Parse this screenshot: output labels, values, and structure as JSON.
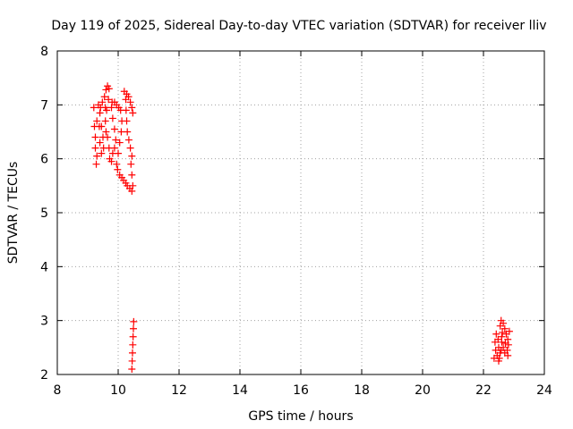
{
  "chart_data": {
    "type": "scatter",
    "title": "Day 119 of 2025, Sidereal Day-to-day VTEC variation (SDTVAR) for receiver lliv",
    "xlabel": "GPS time / hours",
    "ylabel": "SDTVAR / TECUs",
    "xlim": [
      8,
      24
    ],
    "ylim": [
      2,
      8
    ],
    "xticks": [
      "8",
      "10",
      "12",
      "14",
      "16",
      "18",
      "20",
      "22",
      "24"
    ],
    "yticks": [
      "2",
      "3",
      "4",
      "5",
      "6",
      "7",
      "8"
    ],
    "grid": true,
    "marker": "+",
    "series": [
      {
        "name": "SDTVAR",
        "color": "#ff0000",
        "points": [
          [
            9.2,
            6.95
          ],
          [
            9.22,
            6.6
          ],
          [
            9.25,
            6.2
          ],
          [
            9.28,
            5.9
          ],
          [
            9.25,
            6.4
          ],
          [
            9.3,
            6.7
          ],
          [
            9.35,
            7.0
          ],
          [
            9.4,
            6.85
          ],
          [
            9.45,
            6.6
          ],
          [
            9.5,
            6.4
          ],
          [
            9.52,
            6.2
          ],
          [
            9.45,
            6.1
          ],
          [
            9.4,
            6.3
          ],
          [
            9.38,
            6.6
          ],
          [
            9.42,
            6.95
          ],
          [
            9.48,
            7.05
          ],
          [
            9.55,
            7.15
          ],
          [
            9.6,
            7.28
          ],
          [
            9.65,
            7.35
          ],
          [
            9.7,
            7.3
          ],
          [
            9.68,
            7.1
          ],
          [
            9.62,
            6.9
          ],
          [
            9.58,
            6.7
          ],
          [
            9.6,
            6.5
          ],
          [
            9.65,
            6.4
          ],
          [
            9.7,
            6.2
          ],
          [
            9.72,
            6.0
          ],
          [
            9.78,
            5.95
          ],
          [
            9.82,
            6.1
          ],
          [
            9.88,
            6.2
          ],
          [
            9.92,
            6.35
          ],
          [
            9.88,
            6.55
          ],
          [
            9.82,
            6.75
          ],
          [
            9.78,
            6.95
          ],
          [
            9.8,
            7.05
          ],
          [
            9.88,
            7.05
          ],
          [
            9.95,
            7.0
          ],
          [
            10.02,
            6.95
          ],
          [
            10.08,
            6.9
          ],
          [
            10.12,
            6.7
          ],
          [
            10.1,
            6.5
          ],
          [
            10.05,
            6.3
          ],
          [
            10.0,
            6.1
          ],
          [
            9.95,
            5.9
          ],
          [
            9.98,
            5.8
          ],
          [
            10.05,
            5.7
          ],
          [
            10.12,
            5.65
          ],
          [
            10.18,
            5.6
          ],
          [
            10.25,
            5.55
          ],
          [
            10.3,
            5.5
          ],
          [
            10.38,
            5.45
          ],
          [
            10.45,
            5.4
          ],
          [
            10.48,
            5.5
          ],
          [
            10.45,
            5.7
          ],
          [
            10.42,
            5.9
          ],
          [
            10.45,
            6.05
          ],
          [
            10.4,
            6.2
          ],
          [
            10.35,
            6.35
          ],
          [
            10.3,
            6.5
          ],
          [
            10.28,
            6.7
          ],
          [
            10.26,
            6.9
          ],
          [
            10.25,
            7.1
          ],
          [
            10.28,
            7.2
          ],
          [
            10.34,
            7.15
          ],
          [
            10.4,
            7.05
          ],
          [
            10.45,
            6.95
          ],
          [
            10.48,
            6.85
          ],
          [
            10.2,
            7.25
          ],
          [
            9.3,
            6.05
          ],
          [
            9.58,
            6.95
          ],
          [
            10.45,
            2.1
          ],
          [
            10.46,
            2.25
          ],
          [
            10.47,
            2.4
          ],
          [
            10.48,
            2.55
          ],
          [
            10.49,
            2.7
          ],
          [
            10.5,
            2.85
          ],
          [
            10.51,
            2.98
          ],
          [
            22.35,
            2.3
          ],
          [
            22.4,
            2.45
          ],
          [
            22.38,
            2.6
          ],
          [
            22.42,
            2.75
          ],
          [
            22.48,
            2.65
          ],
          [
            22.5,
            2.5
          ],
          [
            22.55,
            2.4
          ],
          [
            22.52,
            2.3
          ],
          [
            22.58,
            2.45
          ],
          [
            22.6,
            2.6
          ],
          [
            22.62,
            2.78
          ],
          [
            22.55,
            2.9
          ],
          [
            22.58,
            3.0
          ],
          [
            22.65,
            2.95
          ],
          [
            22.7,
            2.85
          ],
          [
            22.75,
            2.75
          ],
          [
            22.8,
            2.65
          ],
          [
            22.82,
            2.55
          ],
          [
            22.78,
            2.45
          ],
          [
            22.8,
            2.35
          ],
          [
            22.7,
            2.4
          ],
          [
            22.65,
            2.5
          ],
          [
            22.6,
            2.7
          ],
          [
            22.45,
            2.35
          ],
          [
            22.5,
            2.25
          ],
          [
            22.85,
            2.8
          ],
          [
            22.72,
            2.58
          ]
        ]
      }
    ]
  }
}
